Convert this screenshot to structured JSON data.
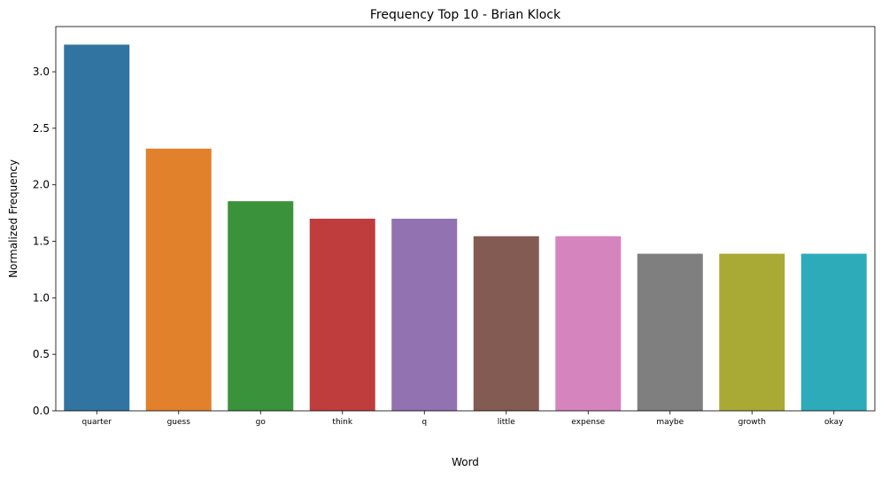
{
  "chart_data": {
    "type": "bar",
    "title": "Frequency Top 10 - Brian Klock",
    "xlabel": "Word",
    "ylabel": "Normalized Frequency",
    "categories": [
      "quarter",
      "guess",
      "go",
      "think",
      "q",
      "little",
      "expense",
      "maybe",
      "growth",
      "okay"
    ],
    "values": [
      3.24,
      2.32,
      1.855,
      1.7,
      1.7,
      1.545,
      1.545,
      1.39,
      1.39,
      1.39
    ],
    "ylim": [
      0,
      3.4
    ],
    "yticks": [
      "0.0",
      "0.5",
      "1.0",
      "1.5",
      "2.0",
      "2.5",
      "3.0"
    ],
    "colors": [
      "#3274a1",
      "#e1812c",
      "#3a923a",
      "#c03d3e",
      "#9372b2",
      "#845b53",
      "#d684bd",
      "#7f7f7f",
      "#a9aa35",
      "#2eabb8"
    ],
    "grid": false,
    "legend": "none"
  }
}
